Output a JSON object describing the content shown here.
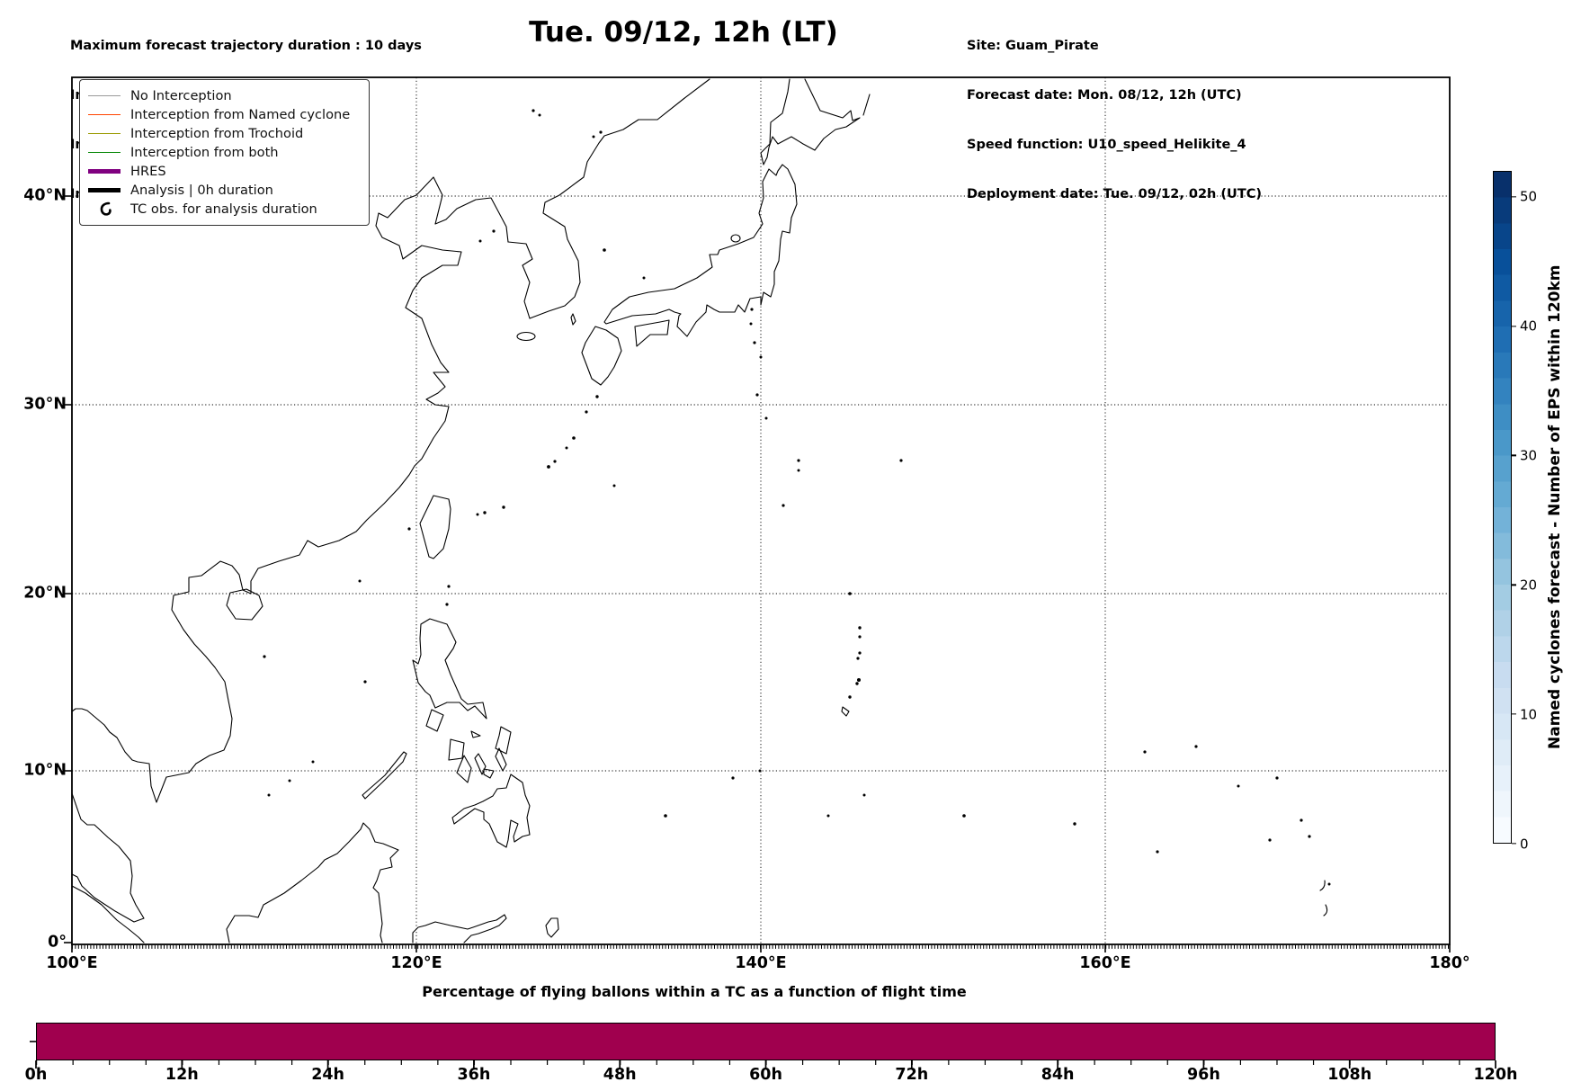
{
  "figure": {
    "info_left": [
      "Maximum forecast trajectory duration : 10 days",
      "Intercept distance: 300km",
      "Intercept RW2 (EPS):  30km/h2",
      "Intercept RW2 (HRES): 30km/h2"
    ],
    "title": "Tue. 09/12, 12h (LT)",
    "info_right": [
      "Site: Guam_Pirate",
      "Forecast date: Mon. 08/12, 12h (UTC)",
      "Speed function: U10_speed_Helikite_4",
      "Deployment date: Tue. 09/12, 02h (UTC)"
    ]
  },
  "map": {
    "x_tick_labels": [
      "100°E",
      "120°E",
      "140°E",
      "160°E",
      "180°"
    ],
    "y_tick_labels": [
      "40°N",
      "30°N",
      "20°N",
      "10°N",
      "0°"
    ],
    "legend": {
      "items": [
        {
          "label": "No Interception",
          "color": "#999999",
          "kind": "line",
          "weight": 1.5
        },
        {
          "label": "Interception from Named cyclone",
          "color": "#ff4500",
          "kind": "line",
          "weight": 1.5
        },
        {
          "label": "Interception from Trochoid",
          "color": "#9a9a00",
          "kind": "line",
          "weight": 1.5
        },
        {
          "label": "Interception from both",
          "color": "#0a8a0a",
          "kind": "line",
          "weight": 1.5
        },
        {
          "label": "HRES",
          "color": "#800080",
          "kind": "line",
          "weight": 5
        },
        {
          "label": "Analysis | 0h duration",
          "color": "#000000",
          "kind": "line",
          "weight": 4.5
        },
        {
          "label": "TC obs. for analysis duration",
          "color": "#000000",
          "kind": "cyclone-symbol"
        }
      ]
    }
  },
  "colorbar": {
    "label": "Named cyclones forecast - Number of EPS within 120km",
    "tick_values": [
      0,
      10,
      20,
      30,
      40,
      50
    ],
    "range": [
      0,
      52
    ],
    "colormap": "Blues",
    "colors": [
      "#f7fbff",
      "#deebf7",
      "#c6dbef",
      "#9ecae1",
      "#6baed6",
      "#4292c6",
      "#2171b5",
      "#08519c",
      "#08306b"
    ]
  },
  "bottom_chart": {
    "title": "Percentage of flying ballons within a TC as a function of flight time",
    "bar_color": "#a0004e",
    "x_tick_labels": [
      "0h",
      "12h",
      "24h",
      "36h",
      "48h",
      "60h",
      "72h",
      "84h",
      "96h",
      "108h",
      "120h"
    ]
  },
  "chart_data": [
    {
      "type": "map",
      "title": "Tue. 09/12, 12h (LT)",
      "region": "East Asia / Western North Pacific coastlines",
      "projection": "Mercator",
      "lon_range_deg_east": [
        100,
        180
      ],
      "lat_range_deg_north": [
        0,
        45
      ],
      "x_ticks": [
        "100°E",
        "120°E",
        "140°E",
        "160°E",
        "180°"
      ],
      "y_ticks": [
        "0°",
        "10°N",
        "20°N",
        "30°N",
        "40°N"
      ],
      "grid": "dotted gridlines every 20° longitude and 10° latitude",
      "data_note": "no trajectory lines visible on map, coastlines only"
    },
    {
      "type": "bar",
      "title": "Percentage of flying ballons within a TC as a function of flight time",
      "x": [
        0,
        12,
        24,
        36,
        48,
        60,
        72,
        84,
        96,
        108,
        120
      ],
      "x_unit": "h",
      "xlim": [
        0,
        120
      ],
      "values": [
        100,
        100,
        100,
        100,
        100,
        100,
        100,
        100,
        100,
        100,
        100
      ],
      "bar_color": "#a0004e",
      "note": "single continuous bar filling the full axis height from 0h to 120h"
    },
    {
      "type": "heatmap",
      "role": "colorbar",
      "label": "Named cyclones forecast - Number of EPS within 120km",
      "range": [
        0,
        52
      ],
      "ticks": [
        0,
        10,
        20,
        30,
        40,
        50
      ],
      "colormap": "Blues",
      "discrete_step": 2
    }
  ]
}
